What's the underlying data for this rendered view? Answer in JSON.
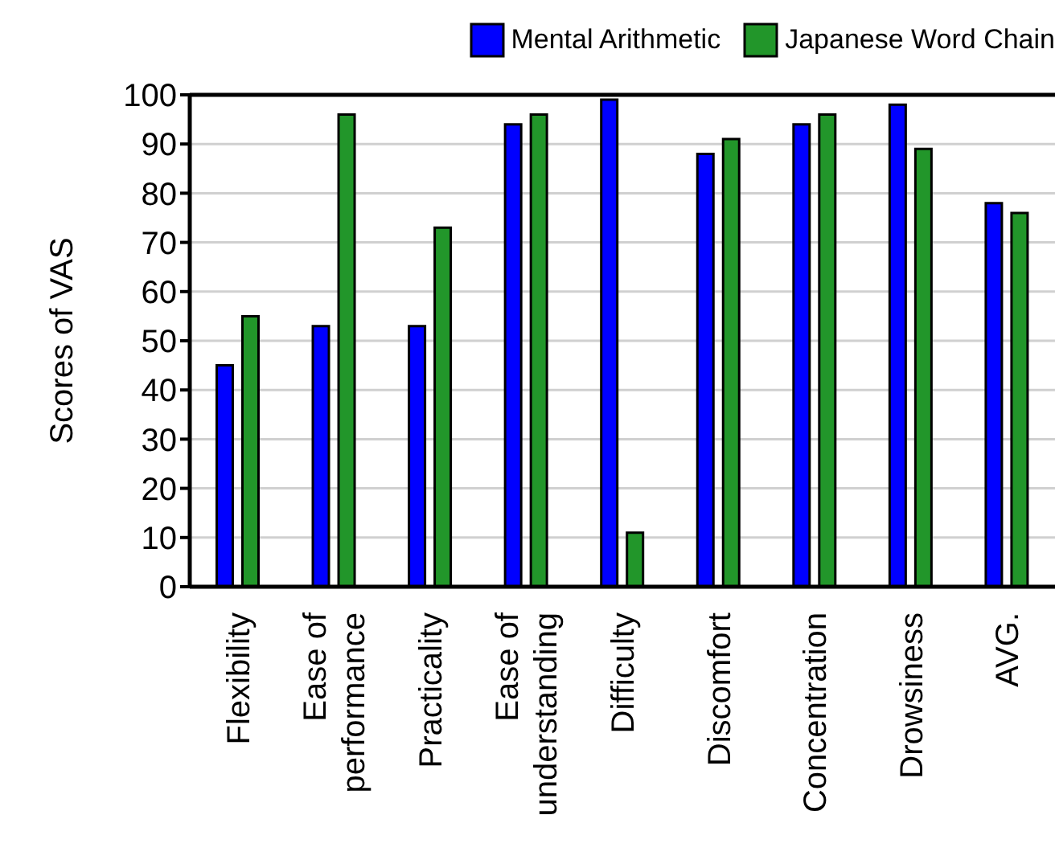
{
  "chart_data": {
    "type": "bar",
    "ylabel": "Scores of VAS",
    "categories": [
      "Flexibility",
      "Ease of\nperformance",
      "Practicality",
      "Ease of\nunderstanding",
      "Difficulty",
      "Discomfort",
      "Concentration",
      "Drowsiness",
      "AVG."
    ],
    "series": [
      {
        "name": "Mental Arithmetic",
        "color": "#0000ff",
        "values": [
          45,
          53,
          53,
          94,
          99,
          88,
          94,
          98,
          78
        ]
      },
      {
        "name": "Japanese Word Chain",
        "color": "#22962a",
        "values": [
          55,
          96,
          73,
          96,
          11,
          91,
          96,
          89,
          76
        ]
      }
    ],
    "ylim": [
      0,
      100
    ],
    "yticks": [
      0,
      10,
      20,
      30,
      40,
      50,
      60,
      70,
      80,
      90,
      100
    ],
    "grid": "y",
    "legend": "top right"
  }
}
